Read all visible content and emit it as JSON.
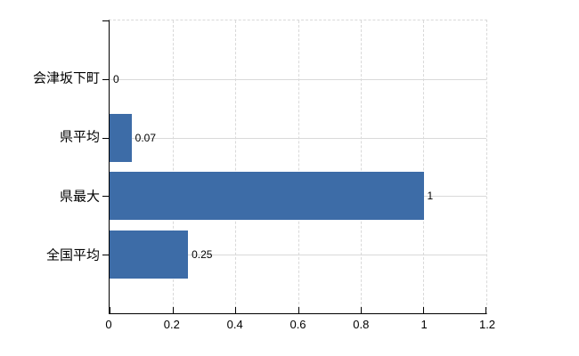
{
  "chart_data": {
    "type": "bar",
    "orientation": "horizontal",
    "title": "",
    "xlabel": "",
    "ylabel": "",
    "categories": [
      "会津坂下町",
      "県平均",
      "県最大",
      "全国平均"
    ],
    "values": [
      0,
      0.07,
      1,
      0.25
    ],
    "value_labels": [
      "0",
      "0.07",
      "1",
      "0.25"
    ],
    "x_ticks": [
      "0",
      "0.2",
      "0.4",
      "0.6",
      "0.8",
      "1",
      "1.2"
    ],
    "xlim": [
      0,
      1.2
    ],
    "grid": true,
    "legend": false,
    "colors": {
      "bar": "#3d6ca7",
      "grid": "#d9d9d9",
      "axis": "#000000",
      "text": "#000000",
      "background": "#ffffff"
    }
  }
}
